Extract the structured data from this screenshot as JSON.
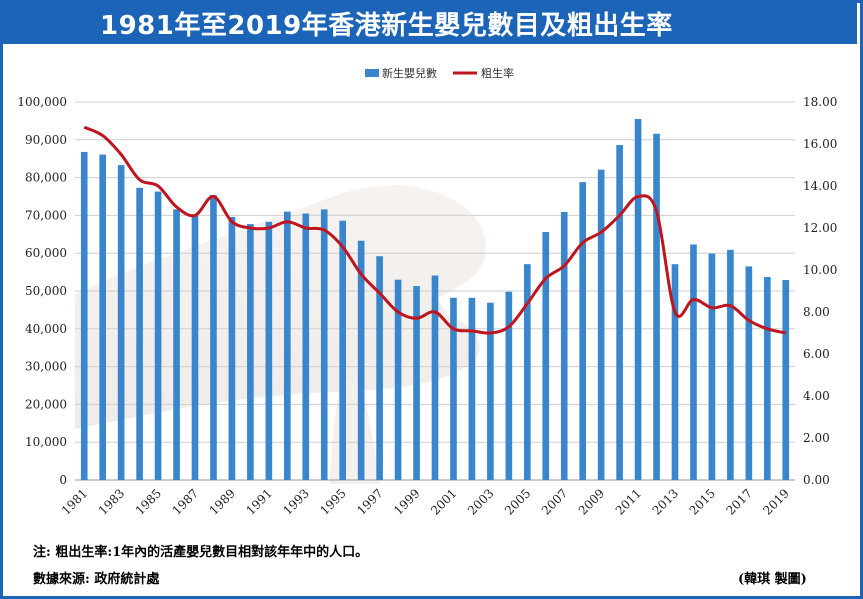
{
  "title": "1981年至2019年香港新生嬰兒數目及粗出生率",
  "footnote": "注: 粗出生率:1年內的活產嬰兒數目相對該年年中的人口。",
  "source": "數據來源: 政府統計處",
  "credit": "(韓琪 製圖)",
  "colors": {
    "bars": "#3a86cc",
    "line": "#c0141e",
    "title_bg": "#1c64b8",
    "grid": "#cfcfcf"
  },
  "chart_data": {
    "type": "bar",
    "x": [
      1981,
      1982,
      1983,
      1984,
      1985,
      1986,
      1987,
      1988,
      1989,
      1990,
      1991,
      1992,
      1993,
      1994,
      1995,
      1996,
      1997,
      1998,
      1999,
      2000,
      2001,
      2002,
      2003,
      2004,
      2005,
      2006,
      2007,
      2008,
      2009,
      2010,
      2011,
      2012,
      2013,
      2014,
      2015,
      2016,
      2017,
      2018,
      2019
    ],
    "x_tick_labels": [
      "1981",
      "1983",
      "1985",
      "1987",
      "1989",
      "1991",
      "1993",
      "1995",
      "1997",
      "1999",
      "2001",
      "2003",
      "2005",
      "2007",
      "2009",
      "2011",
      "2013",
      "2015",
      "2017",
      "2019"
    ],
    "series": [
      {
        "name": "新生嬰兒數",
        "type": "bar",
        "axis": "left",
        "values": [
          86800,
          86100,
          83300,
          77300,
          76300,
          71600,
          69900,
          75400,
          69600,
          67700,
          68300,
          71000,
          70500,
          71600,
          68600,
          63300,
          59200,
          53000,
          51300,
          54100,
          48200,
          48200,
          46900,
          49800,
          57100,
          65600,
          70900,
          78800,
          82100,
          88600,
          95500,
          91600,
          57100,
          62300,
          59900,
          60900,
          56500,
          53700,
          52900
        ]
      },
      {
        "name": "粗生率",
        "type": "line",
        "axis": "right",
        "values": [
          16.8,
          16.4,
          15.5,
          14.3,
          14.0,
          13.0,
          12.6,
          13.5,
          12.3,
          12.0,
          12.0,
          12.3,
          12.0,
          11.9,
          11.1,
          9.8,
          8.9,
          8.0,
          7.7,
          8.0,
          7.2,
          7.1,
          7.0,
          7.3,
          8.4,
          9.6,
          10.2,
          11.3,
          11.8,
          12.6,
          13.5,
          12.8,
          8.0,
          8.6,
          8.2,
          8.3,
          7.6,
          7.2,
          7.0
        ]
      }
    ],
    "y_left_ticks": [
      "0",
      "10,000",
      "20,000",
      "30,000",
      "40,000",
      "50,000",
      "60,000",
      "70,000",
      "80,000",
      "90,000",
      "100,000"
    ],
    "y_right_ticks": [
      "0.00",
      "2.00",
      "4.00",
      "6.00",
      "8.00",
      "10.00",
      "12.00",
      "14.00",
      "16.00",
      "18.00"
    ],
    "ylim_left": [
      0,
      100000
    ],
    "ylim_right": [
      0,
      18
    ],
    "legend_position": "top-center",
    "grid": true
  }
}
